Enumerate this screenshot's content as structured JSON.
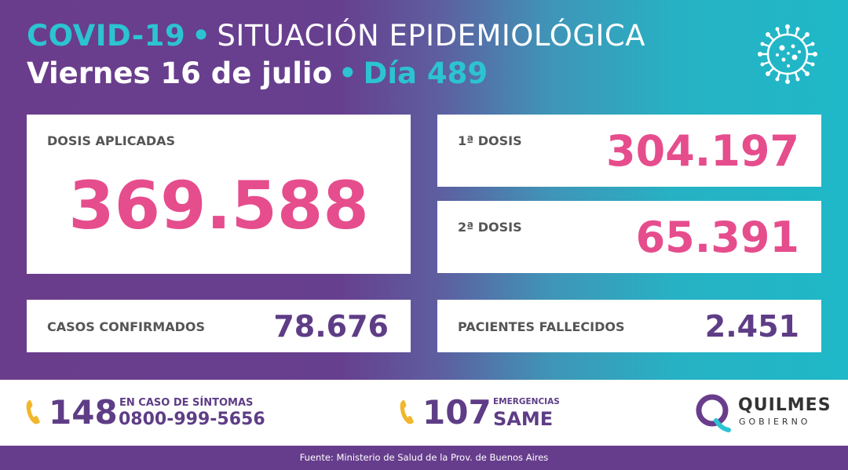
{
  "header": {
    "title_highlight": "COVID-19",
    "title_separator": "•",
    "title_rest": "SITUACIÓN EPIDEMIOLÓGICA",
    "date": "Viernes 16 de julio",
    "day_separator": "•",
    "day": "Día 489",
    "icon": "virus-icon"
  },
  "cards": {
    "dosis_aplicadas": {
      "label": "DOSIS APLICADAS",
      "value": "369.588"
    },
    "primera_dosis": {
      "label": "1ª DOSIS",
      "value": "304.197"
    },
    "segunda_dosis": {
      "label": "2ª DOSIS",
      "value": "65.391"
    },
    "casos_confirmados": {
      "label": "CASOS CONFIRMADOS",
      "value": "78.676"
    },
    "pacientes_fallecidos": {
      "label": "PACIENTES FALLECIDOS",
      "value": "2.451"
    }
  },
  "footer": {
    "hotline_1": {
      "number": "148",
      "line1": "EN CASO DE SÍNTOMAS",
      "line2": "0800-999-5656"
    },
    "hotline_2": {
      "number": "107",
      "line1": "EMERGENCIAS",
      "line2": "SAME"
    },
    "brand": {
      "name": "QUILMES",
      "sub": "GOBIERNO"
    },
    "source": "Fuente: Ministerio de Salud de la Prov. de Buenos Aires"
  },
  "colors": {
    "pink": "#e64d8d",
    "purple": "#5e3d86",
    "cyan": "#2cc3d3",
    "phone_yellow": "#f2b62c"
  }
}
